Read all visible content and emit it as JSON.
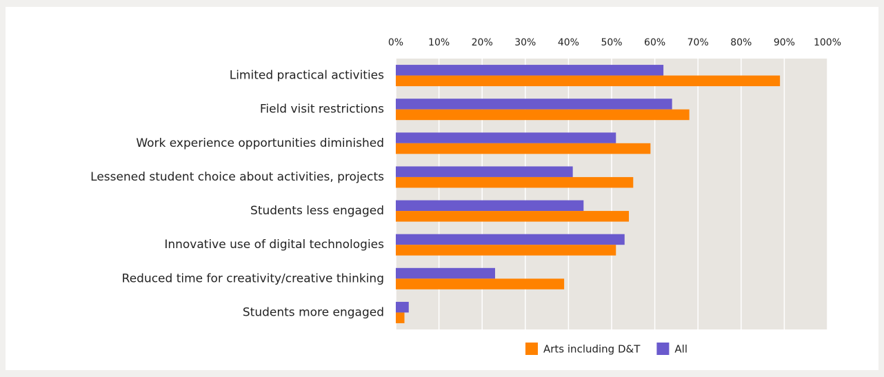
{
  "chart_data": {
    "type": "bar",
    "orientation": "horizontal",
    "categories": [
      "Limited practical activities",
      "Field visit restrictions",
      "Work experience opportunities diminished",
      "Lessened student choice about activities, projects",
      "Students less engaged",
      "Innovative use of digital technologies",
      "Reduced time for creativity/creative thinking",
      "Students more engaged"
    ],
    "series": [
      {
        "name": "Arts including D&T",
        "color": "#ff8200",
        "values": [
          89,
          68,
          59,
          55,
          54,
          51,
          39,
          2
        ]
      },
      {
        "name": "All",
        "color": "#6a5acd",
        "values": [
          62,
          64,
          51,
          41,
          43.5,
          53,
          23,
          3
        ]
      }
    ],
    "xlim": [
      0,
      100
    ],
    "xticks": [
      {
        "value": 0,
        "label": "0%"
      },
      {
        "value": 10,
        "label": "10%"
      },
      {
        "value": 20,
        "label": "20%"
      },
      {
        "value": 30,
        "label": "30%"
      },
      {
        "value": 40,
        "label": "40%"
      },
      {
        "value": 50,
        "label": "50%"
      },
      {
        "value": 60,
        "label": "60%"
      },
      {
        "value": 70,
        "label": "70%"
      },
      {
        "value": 80,
        "label": "80%"
      },
      {
        "value": 90,
        "label": "90%"
      },
      {
        "value": 100,
        "label": "100%"
      }
    ],
    "grid": true,
    "legend": "bottom"
  }
}
